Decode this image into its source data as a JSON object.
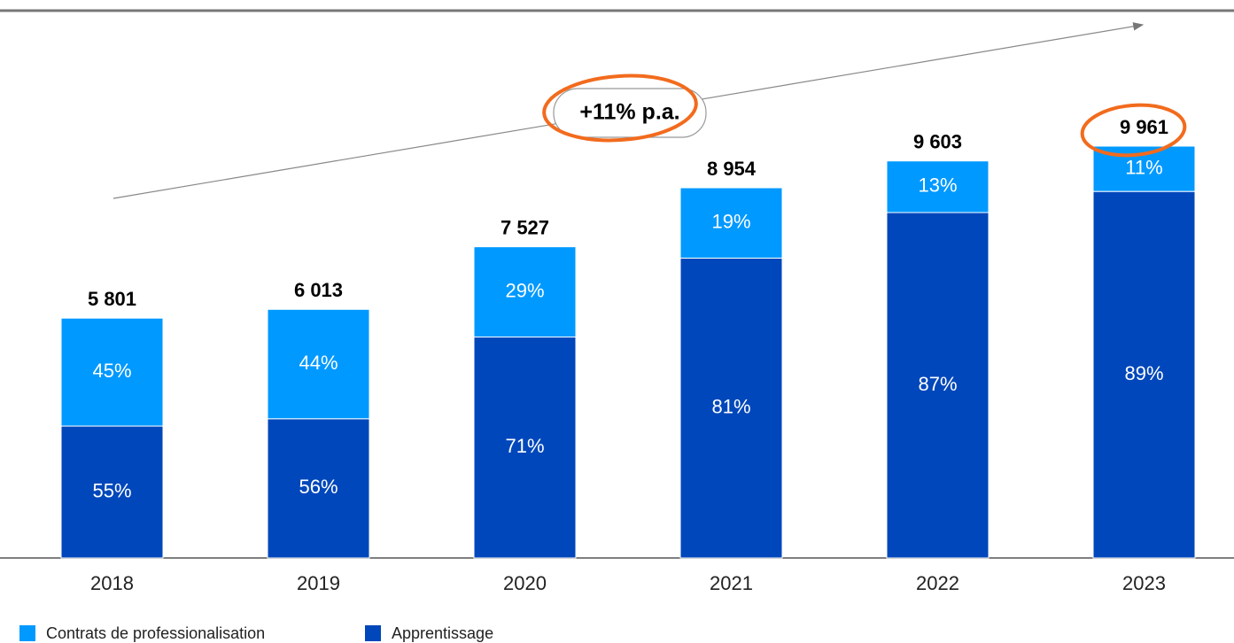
{
  "chart_data": {
    "type": "stacked_bar",
    "categories": [
      "2018",
      "2019",
      "2020",
      "2021",
      "2022",
      "2023"
    ],
    "totals": {
      "values": [
        5801,
        6013,
        7527,
        8954,
        9603,
        9961
      ],
      "value_labels": [
        "5 801",
        "6 013",
        "7 527",
        "8 954",
        "9 603",
        "9 961"
      ]
    },
    "series": [
      {
        "name": "Contrats de professionalisation",
        "color": "#0099ff",
        "values": [
          45,
          44,
          29,
          19,
          13,
          11
        ],
        "value_labels": [
          "45%",
          "44%",
          "29%",
          "19%",
          "13%",
          "11%"
        ]
      },
      {
        "name": "Apprentissage",
        "color": "#0047bb",
        "values": [
          55,
          56,
          71,
          81,
          87,
          89
        ],
        "value_labels": [
          "55%",
          "56%",
          "71%",
          "81%",
          "87%",
          "89%"
        ]
      }
    ],
    "annotation": "+11% p.a."
  }
}
